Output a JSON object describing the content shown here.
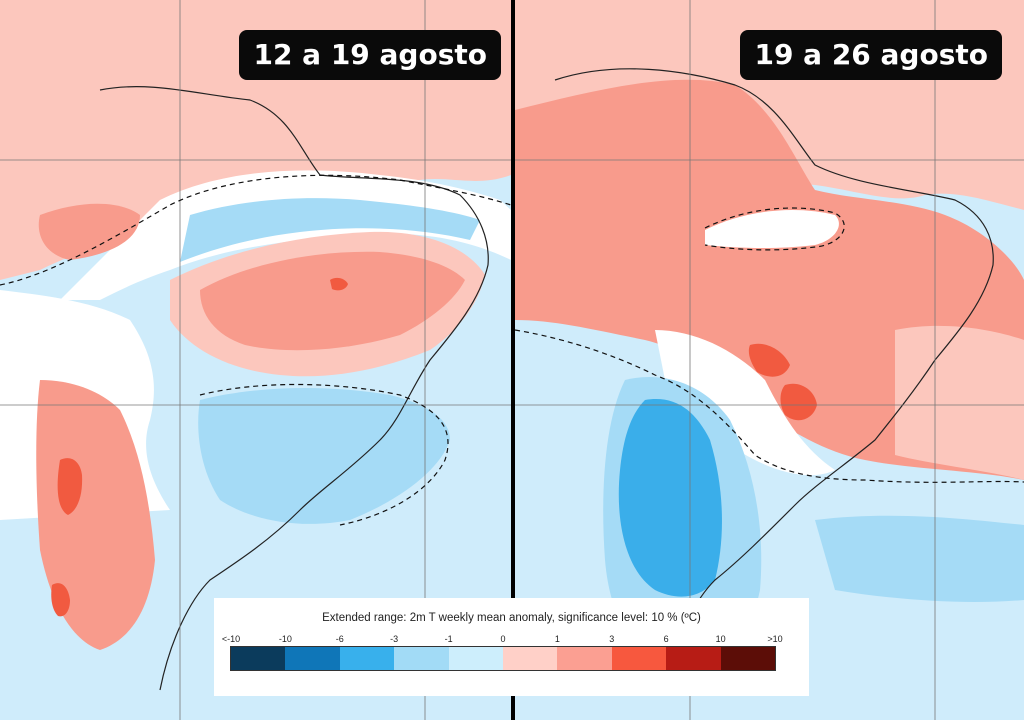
{
  "panels": [
    {
      "date_range": "12 a 19 agosto"
    },
    {
      "date_range": "19 a 26 agosto"
    }
  ],
  "legend": {
    "title": "Extended range: 2m T weekly mean anomaly, significance level: 10 % (ºC)",
    "ticks": [
      "<-10",
      "-10",
      "-6",
      "-3",
      "-1",
      "0",
      "1",
      "3",
      "6",
      "10",
      ">10"
    ],
    "colors": [
      "#0b3b5c",
      "#0f76b8",
      "#38b0ec",
      "#a2dbf6",
      "#cdeefc",
      "#ffd0c8",
      "#fb9f92",
      "#f7583e",
      "#b71c15",
      "#5c0d07"
    ]
  },
  "map_colors": {
    "ocean": "#cfecfb",
    "warm_light": "#fcc7bd",
    "warm": "#f89b8c",
    "warm_strong": "#f15a40",
    "cool": "#a5dbf6",
    "cool_strong": "#3aaeea",
    "neutral": "#ffffff"
  }
}
